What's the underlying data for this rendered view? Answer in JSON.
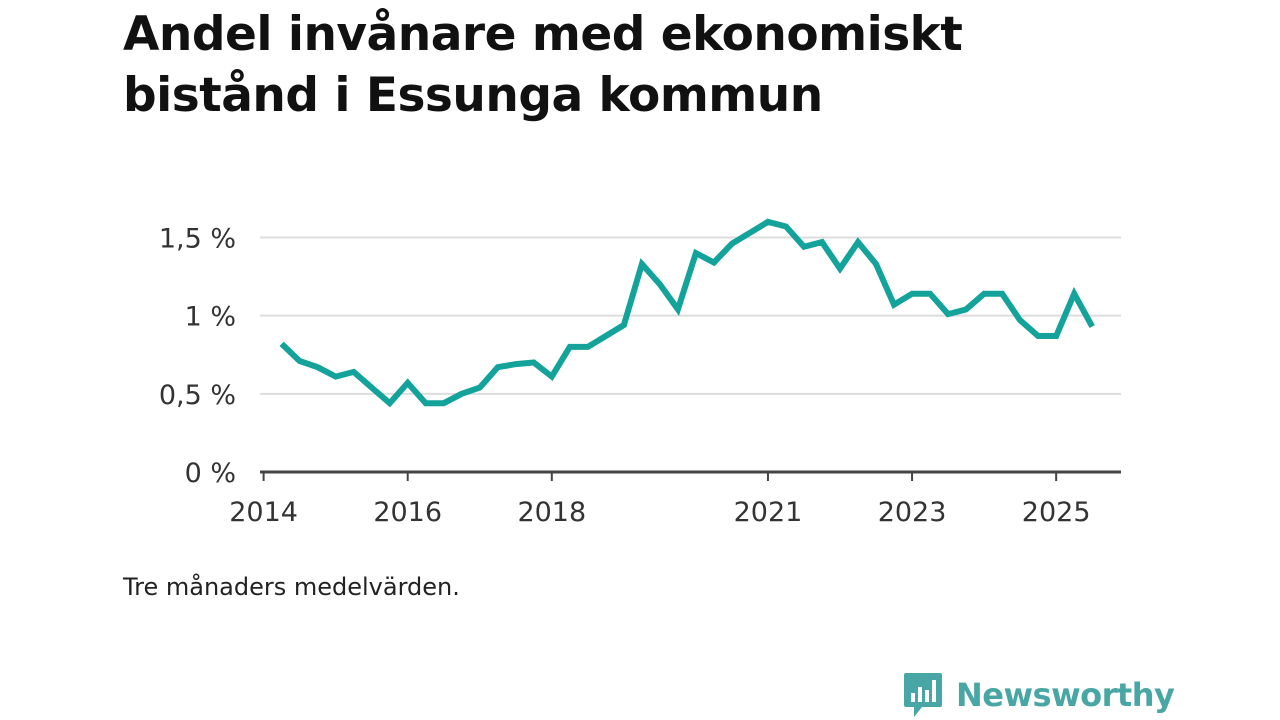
{
  "title": "Andel invånare med ekonomiskt bistånd i Essunga kommun",
  "note": "Tre månaders medelvärden.",
  "brand": {
    "name": "Newsworthy",
    "logo_icon": "bar-chart-speech-bubble-icon",
    "color": "#48a6a4"
  },
  "chart_data": {
    "type": "line",
    "title": "Andel invånare med ekonomiskt bistånd i Essunga kommun",
    "xlabel": "",
    "ylabel": "",
    "xlim": [
      2013.95,
      2025.9
    ],
    "ylim": [
      0,
      1.65
    ],
    "y_ticks": [
      0,
      0.5,
      1,
      1.5
    ],
    "y_tick_labels": [
      "0 %",
      "0,5 %",
      "1 %",
      "1,5 %"
    ],
    "x_ticks": [
      2014,
      2016,
      2018,
      2021,
      2023,
      2025
    ],
    "x_tick_labels": [
      "2014",
      "2016",
      "2018",
      "2021",
      "2023",
      "2025"
    ],
    "grid": true,
    "line_color": "#14a39b",
    "series": [
      {
        "x": [
          2014.25,
          2014.5,
          2014.75,
          2015.0,
          2015.25,
          2015.5,
          2015.75,
          2016.0,
          2016.25,
          2016.5,
          2016.75,
          2017.0,
          2017.25,
          2017.5,
          2017.75,
          2018.0,
          2018.25,
          2018.5,
          2018.75,
          2019.0,
          2019.25,
          2019.5,
          2019.75,
          2020.0,
          2020.25,
          2020.5,
          2020.75,
          2021.0,
          2021.25,
          2021.5,
          2021.75,
          2022.0,
          2022.25,
          2022.5,
          2022.75,
          2023.0,
          2023.25,
          2023.5,
          2023.75,
          2024.0,
          2024.25,
          2024.5,
          2024.75,
          2025.0,
          2025.25,
          2025.5
        ],
        "values": [
          0.82,
          0.71,
          0.67,
          0.61,
          0.64,
          0.54,
          0.44,
          0.57,
          0.44,
          0.44,
          0.5,
          0.54,
          0.67,
          0.69,
          0.7,
          0.61,
          0.8,
          0.8,
          0.87,
          0.94,
          1.33,
          1.2,
          1.04,
          1.4,
          1.34,
          1.46,
          1.53,
          1.6,
          1.57,
          1.44,
          1.47,
          1.3,
          1.47,
          1.33,
          1.07,
          1.14,
          1.14,
          1.01,
          1.04,
          1.14,
          1.14,
          0.97,
          0.87,
          0.87,
          1.14,
          0.93
        ]
      }
    ]
  }
}
